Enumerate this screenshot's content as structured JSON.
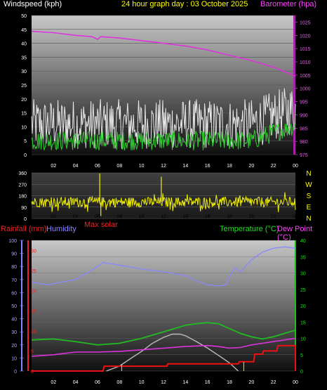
{
  "header": {
    "wind_label": "Windspeed (kph)",
    "title": "24 hour graph day : 03 October 2025",
    "baro_label": "Barometer (hpa)"
  },
  "wind_panel": {
    "y_ticks": [
      "50",
      "45",
      "40",
      "35",
      "30",
      "25",
      "20",
      "15",
      "10",
      "5",
      "0"
    ],
    "y2_ticks": [
      "1025",
      "1020",
      "1015",
      "1010",
      "1005",
      "1000",
      "995",
      "990",
      "985",
      "980",
      "975"
    ]
  },
  "dir_panel": {
    "y_ticks": [
      "360",
      "270",
      "180",
      "90",
      "0"
    ],
    "compass": [
      "N",
      "W",
      "S",
      "E",
      "N"
    ],
    "max_solar_label": "Max solar"
  },
  "bottom_panel": {
    "rain_label": "Rainfall (mm)",
    "humidity_label": "Humidity",
    "temp_label": "Temperature (°C)",
    "dew_label": "Dew Point (°C)",
    "humidity_ticks": [
      "100",
      "90",
      "80",
      "70",
      "60",
      "50",
      "40",
      "30",
      "20",
      "10",
      "0"
    ],
    "rain_ticks": [
      "30",
      "25",
      "20",
      "15",
      "10",
      "5",
      "0"
    ],
    "temp_ticks": [
      "40",
      "35",
      "30",
      "25",
      "20",
      "15",
      "10",
      "5",
      "0"
    ]
  },
  "x_ticks": [
    "02",
    "04",
    "06",
    "08",
    "10",
    "12",
    "14",
    "16",
    "18",
    "20",
    "22",
    "00"
  ],
  "colors": {
    "wind_avg": "#33cc33",
    "wind_gust": "#e8e8e8",
    "barometer": "#dd33dd",
    "direction": "#f0f000",
    "temperature": "#22bb22",
    "dew_point": "#dd33dd",
    "humidity": "#8888ff",
    "rain": "#ee1111",
    "solar": "#bbbbbb",
    "rain_text": "#ee2222"
  },
  "chart_data": [
    {
      "type": "line",
      "name": "wind-and-barometer",
      "x_unit": "hour",
      "xlim": [
        0,
        24
      ],
      "ylim": [
        0,
        50
      ],
      "y2lim": [
        975,
        1027.5
      ],
      "series": [
        {
          "name": "Barometer (hpa)",
          "axis": "right",
          "x": [
            0,
            2,
            4,
            5.5,
            6,
            6.3,
            8,
            10,
            12,
            14,
            16,
            18,
            20,
            22,
            23.2,
            24
          ],
          "values": [
            1021.5,
            1021,
            1020,
            1019.5,
            1018.5,
            1019.5,
            1019,
            1018,
            1017,
            1016,
            1014.5,
            1012.5,
            1010.5,
            1008,
            1006,
            1004.5
          ]
        },
        {
          "name": "Wind average",
          "axis": "left",
          "x_range": [
            0,
            24
          ],
          "mean": 5,
          "spread": 3.5,
          "max": 11
        },
        {
          "name": "Wind gust",
          "axis": "left",
          "x_range": [
            0,
            24
          ],
          "mean": 11,
          "spread": 9,
          "max": 33
        }
      ]
    },
    {
      "type": "line",
      "name": "wind-direction",
      "x_unit": "hour",
      "xlim": [
        0,
        24
      ],
      "ylim": [
        0,
        360
      ],
      "series": [
        {
          "name": "Wind direction",
          "x_range": [
            0,
            24
          ],
          "mean": 130,
          "spread": 40,
          "spikes": [
            [
              6.2,
              355
            ],
            [
              6.3,
              20
            ],
            [
              11.8,
              330
            ],
            [
              12.6,
              70
            ]
          ]
        }
      ]
    },
    {
      "type": "line",
      "name": "temperature-humidity-rain",
      "x_unit": "hour",
      "xlim": [
        0,
        24
      ],
      "ylim_humidity": [
        0,
        100
      ],
      "ylim_rain": [
        0,
        32.5
      ],
      "ylim_temp": [
        0,
        40
      ],
      "series": [
        {
          "name": "Humidity",
          "axis": "humidity",
          "x": [
            0,
            1.5,
            4,
            6,
            6.5,
            8,
            10,
            12,
            14,
            15,
            16,
            17,
            17.7,
            18,
            18.5,
            19,
            20,
            21,
            22,
            23,
            24
          ],
          "values": [
            68,
            66,
            70,
            80,
            83,
            81,
            78,
            76,
            73,
            69,
            66,
            65,
            66,
            72,
            79,
            76,
            85,
            91,
            94,
            95,
            94
          ]
        },
        {
          "name": "Temperature (°C)",
          "axis": "temp",
          "x": [
            0,
            2,
            4,
            6,
            8,
            10,
            12,
            14,
            15,
            16,
            17,
            18,
            19,
            20,
            21,
            22,
            23,
            24
          ],
          "values": [
            9.5,
            9.8,
            9,
            8,
            8.5,
            10,
            12,
            14,
            14.5,
            14.8,
            14.5,
            13,
            11.5,
            10.5,
            9.8,
            10.5,
            11.5,
            12.5
          ]
        },
        {
          "name": "Dew Point (°C)",
          "axis": "temp",
          "x": [
            0,
            2,
            4,
            6,
            8,
            10,
            12,
            14,
            16,
            17,
            18,
            19,
            20,
            21,
            22,
            23,
            24
          ],
          "values": [
            4.5,
            5,
            5.8,
            5.8,
            6,
            6.5,
            7,
            7.5,
            7.8,
            7.5,
            7,
            7.2,
            8,
            8.5,
            9,
            9.5,
            10
          ]
        },
        {
          "name": "Rainfall (mm)",
          "axis": "rain",
          "x": [
            0,
            6.5,
            6.6,
            12.3,
            12.4,
            18.8,
            18.9,
            20.2,
            20.3,
            21,
            21.1,
            22.3,
            22.4,
            24,
            24
          ],
          "values": [
            0,
            0,
            1.2,
            1.2,
            1.8,
            1.8,
            2.3,
            2.3,
            4.2,
            4.2,
            5,
            5,
            6.3,
            6.3,
            0
          ]
        },
        {
          "name": "Max solar",
          "axis": "temp",
          "x": [
            6.8,
            8,
            9,
            10,
            11,
            12,
            12.8,
            13.5,
            14,
            15,
            16,
            17,
            18,
            18.8
          ],
          "values": [
            0,
            1.5,
            3.8,
            6,
            8.5,
            10.3,
            11.3,
            11.3,
            10.8,
            9,
            7,
            4.8,
            2.5,
            0
          ]
        }
      ]
    }
  ]
}
